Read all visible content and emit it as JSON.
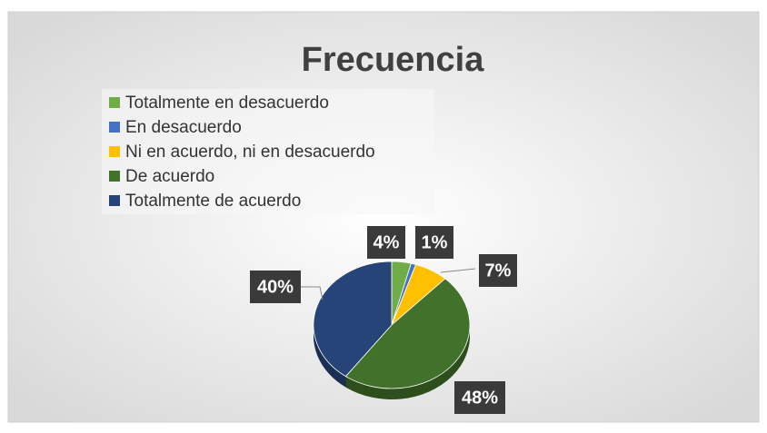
{
  "chart_data": {
    "type": "pie",
    "title": "Frecuencia",
    "categories": [
      "Totalmente en desacuerdo",
      "En desacuerdo",
      "Ni en acuerdo, ni en desacuerdo",
      "De acuerdo",
      "Totalmente de acuerdo"
    ],
    "values": [
      4,
      1,
      7,
      48,
      40
    ],
    "value_labels": [
      "4%",
      "1%",
      "7%",
      "48%",
      "40%"
    ],
    "colors": [
      "#70ad47",
      "#4472c4",
      "#ffc000",
      "#41712a",
      "#264478"
    ],
    "legend": "top-left"
  }
}
